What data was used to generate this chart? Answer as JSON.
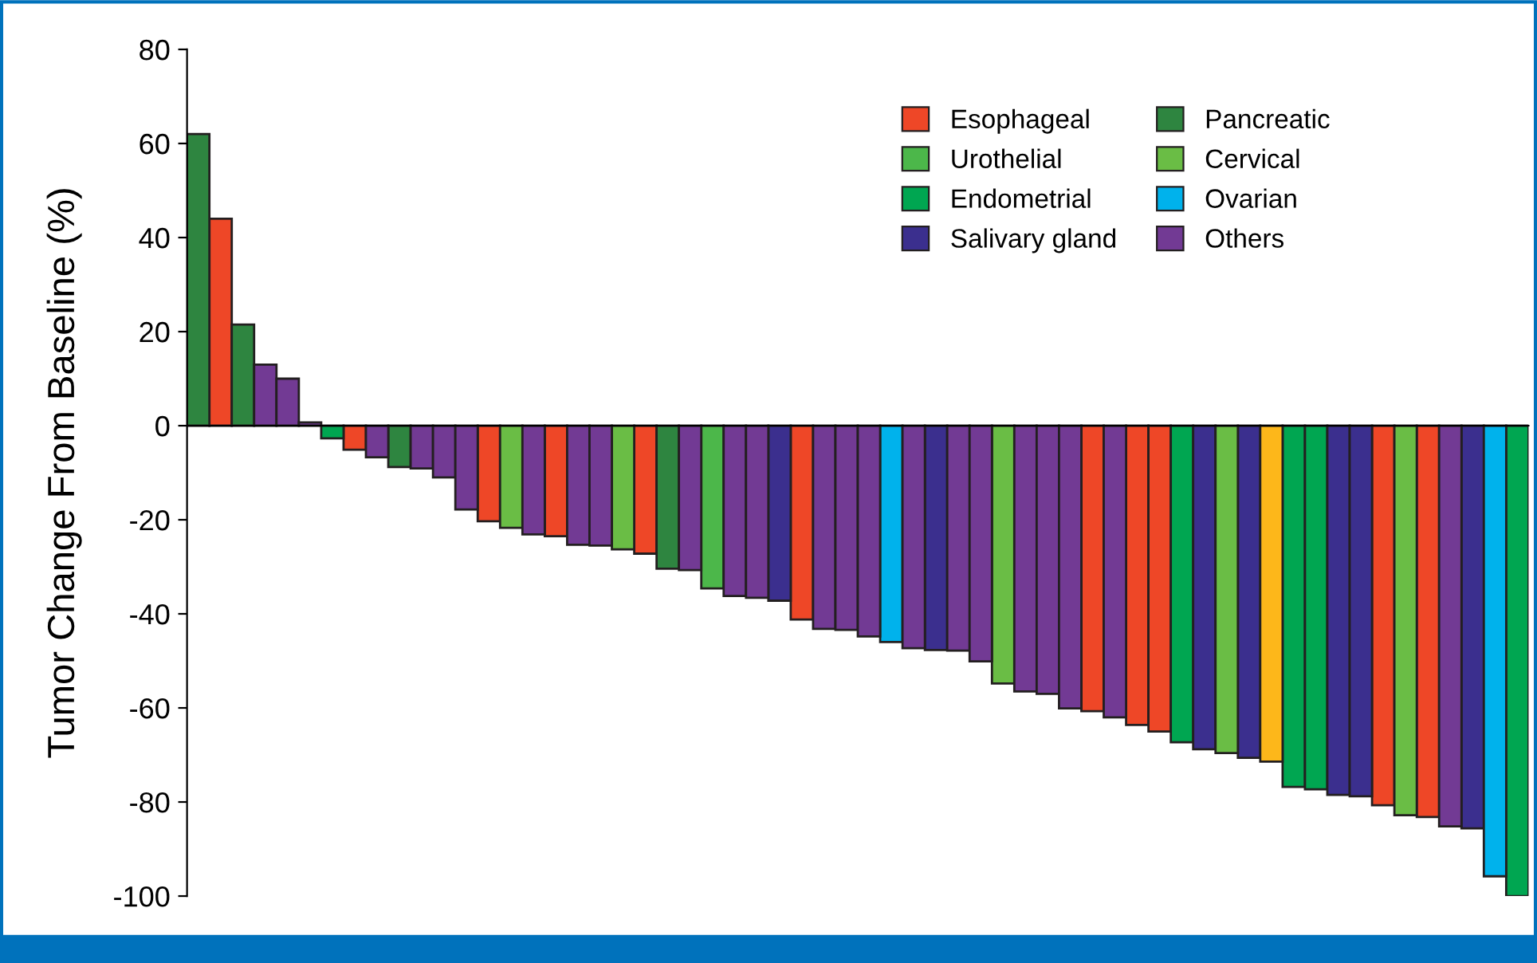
{
  "chart_data": {
    "type": "bar",
    "ylabel": "Tumor Change From Baseline (%)",
    "categories": [
      null,
      null,
      null,
      null,
      null,
      null,
      null,
      null,
      null,
      null,
      null,
      null,
      null,
      null,
      null,
      null,
      null,
      null,
      null,
      null,
      null,
      null,
      null,
      null,
      null,
      null,
      null,
      null,
      null,
      null,
      null,
      null,
      null,
      null,
      null,
      null,
      null,
      null,
      null,
      null,
      null,
      null,
      null,
      null,
      null,
      null,
      null,
      null,
      null,
      null,
      null,
      null,
      null,
      null,
      null,
      null,
      null,
      null,
      null,
      null
    ],
    "ylim": [
      -100,
      80
    ],
    "yticks": [
      -100,
      -80,
      -60,
      -40,
      -20,
      0,
      20,
      40,
      60,
      80
    ],
    "legend": "top right",
    "series": [
      {
        "name": "Esophageal",
        "color": "#ee4727",
        "values": [
          null,
          44,
          null,
          null,
          null,
          null,
          null,
          -5.1,
          null,
          null,
          null,
          null,
          null,
          -20.3,
          null,
          null,
          -23.5,
          null,
          null,
          null,
          -27.2,
          null,
          null,
          null,
          null,
          null,
          null,
          -41.2,
          null,
          null,
          null,
          null,
          null,
          null,
          null,
          null,
          null,
          null,
          null,
          null,
          -60.7,
          null,
          -63.6,
          -65,
          null,
          null,
          null,
          null,
          null,
          null,
          null,
          null,
          null,
          -80.7,
          null,
          -83.2,
          null,
          null,
          null,
          null
        ]
      },
      {
        "name": "Urothelial",
        "color": "#4cb74a",
        "values": [
          null,
          null,
          null,
          null,
          null,
          null,
          null,
          null,
          null,
          null,
          null,
          null,
          null,
          null,
          null,
          null,
          null,
          null,
          null,
          null,
          null,
          null,
          null,
          -34.6,
          null,
          null,
          null,
          null,
          null,
          null,
          null,
          null,
          null,
          null,
          null,
          null,
          null,
          null,
          null,
          null,
          null,
          null,
          null,
          null,
          null,
          null,
          null,
          null,
          null,
          null,
          null,
          null,
          null,
          null,
          null,
          null,
          null,
          null,
          null,
          null
        ]
      },
      {
        "name": "Endometrial",
        "color": "#00a651",
        "values": [
          null,
          null,
          null,
          null,
          null,
          null,
          -2.7,
          null,
          null,
          null,
          null,
          null,
          null,
          null,
          null,
          null,
          null,
          null,
          null,
          null,
          null,
          null,
          null,
          null,
          null,
          null,
          null,
          null,
          null,
          null,
          null,
          null,
          null,
          null,
          null,
          null,
          null,
          null,
          null,
          null,
          null,
          null,
          null,
          null,
          -67.3,
          null,
          null,
          null,
          null,
          -76.8,
          -77.3,
          null,
          null,
          null,
          null,
          null,
          null,
          null,
          null,
          -100
        ]
      },
      {
        "name": "Salivary gland",
        "color": "#3b2f8e",
        "values": [
          null,
          null,
          null,
          null,
          null,
          null,
          null,
          null,
          null,
          null,
          null,
          null,
          null,
          null,
          null,
          null,
          null,
          null,
          null,
          null,
          null,
          null,
          null,
          null,
          null,
          null,
          -37.2,
          null,
          null,
          null,
          null,
          null,
          null,
          -47.7,
          null,
          null,
          null,
          null,
          null,
          null,
          null,
          null,
          null,
          null,
          null,
          -68.8,
          null,
          -70.6,
          null,
          null,
          null,
          -78.5,
          -78.8,
          null,
          null,
          null,
          null,
          -85.6,
          null,
          null
        ]
      },
      {
        "name": "Pancreatic",
        "color": "#2e8540",
        "values": [
          62,
          null,
          21.5,
          null,
          null,
          null,
          null,
          null,
          null,
          -8.8,
          null,
          null,
          null,
          null,
          null,
          null,
          null,
          null,
          null,
          null,
          null,
          -30.4,
          null,
          null,
          null,
          null,
          null,
          null,
          null,
          null,
          null,
          null,
          null,
          null,
          null,
          null,
          null,
          null,
          null,
          null,
          null,
          null,
          null,
          null,
          null,
          null,
          null,
          null,
          null,
          null,
          null,
          null,
          null,
          null,
          null,
          null,
          null,
          null,
          null,
          null
        ]
      },
      {
        "name": "Cervical",
        "color": "#6abd45",
        "values": [
          null,
          null,
          null,
          null,
          null,
          null,
          null,
          null,
          null,
          null,
          null,
          null,
          null,
          null,
          -21.7,
          null,
          null,
          null,
          null,
          -26.3,
          null,
          null,
          null,
          null,
          null,
          null,
          null,
          null,
          null,
          null,
          null,
          null,
          null,
          null,
          null,
          null,
          -54.8,
          null,
          null,
          null,
          null,
          null,
          null,
          null,
          null,
          null,
          -69.6,
          null,
          null,
          null,
          null,
          null,
          null,
          null,
          -82.8,
          null,
          null,
          null,
          null,
          null
        ]
      },
      {
        "name": "Ovarian",
        "color": "#00b2ec",
        "values": [
          null,
          null,
          null,
          null,
          null,
          null,
          null,
          null,
          null,
          null,
          null,
          null,
          null,
          null,
          null,
          null,
          null,
          null,
          null,
          null,
          null,
          null,
          null,
          null,
          null,
          null,
          null,
          null,
          null,
          null,
          null,
          -46,
          null,
          null,
          null,
          null,
          null,
          null,
          null,
          null,
          null,
          null,
          null,
          null,
          null,
          null,
          null,
          null,
          null,
          null,
          null,
          null,
          null,
          null,
          null,
          null,
          null,
          null,
          -95.8,
          null
        ]
      },
      {
        "name": "Others",
        "color": "#723a94",
        "values": [
          null,
          null,
          null,
          13,
          10,
          0.7,
          null,
          null,
          -6.7,
          null,
          -9.1,
          -11,
          -17.8,
          null,
          null,
          -23.1,
          null,
          -25.3,
          -25.5,
          null,
          null,
          null,
          -30.7,
          null,
          -36.2,
          -36.6,
          null,
          null,
          -43.2,
          -43.4,
          -44.8,
          null,
          -47.3,
          null,
          -47.8,
          -50.1,
          null,
          -56.5,
          -57,
          -60.1,
          null,
          -62,
          null,
          null,
          null,
          null,
          null,
          null,
          null,
          null,
          null,
          null,
          null,
          null,
          null,
          null,
          -85.2,
          null,
          null,
          null
        ]
      },
      {
        "color": "#fdb71a",
        "values": [
          null,
          null,
          null,
          null,
          null,
          null,
          null,
          null,
          null,
          null,
          null,
          null,
          null,
          null,
          null,
          null,
          null,
          null,
          null,
          null,
          null,
          null,
          null,
          null,
          null,
          null,
          null,
          null,
          null,
          null,
          null,
          null,
          null,
          null,
          null,
          null,
          null,
          null,
          null,
          null,
          null,
          null,
          null,
          null,
          null,
          null,
          null,
          null,
          -71.4,
          null,
          null,
          null,
          null,
          null,
          null,
          null,
          null,
          null,
          null,
          null
        ]
      }
    ]
  }
}
